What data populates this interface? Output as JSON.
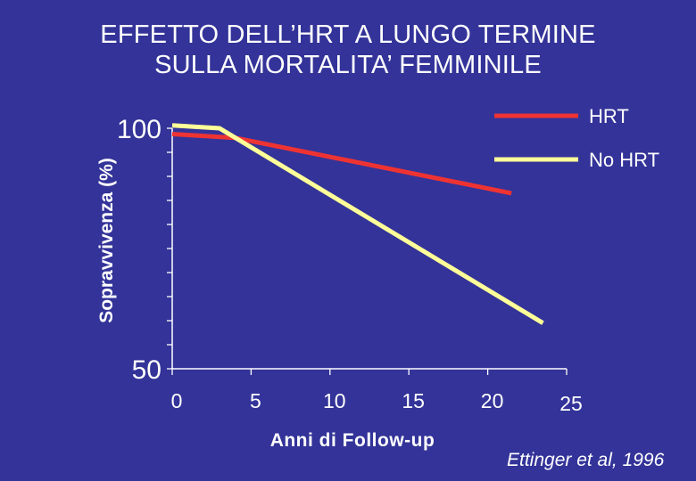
{
  "title_lines": [
    "EFFETTO DELL’HRT A LUNGO TERMINE",
    "SULLA MORTALITA’ FEMMINILE"
  ],
  "source": "Ettinger et al, 1996",
  "colors": {
    "background": "#333399",
    "hrt": "#ee3333",
    "no_hrt": "#ffff99",
    "axis": "#ffffff"
  },
  "chart_data": {
    "type": "line",
    "xlabel": "Anni di Follow-up",
    "ylabel": "Sopravvivenza (%)",
    "xlim": [
      0,
      25
    ],
    "ylim": [
      50,
      100
    ],
    "x_ticks": [
      0,
      5,
      10,
      15,
      20,
      25
    ],
    "y_tick_labels": [
      "50",
      "100"
    ],
    "grid": false,
    "legend": "top-right",
    "series": [
      {
        "name": "HRT",
        "color": "#ee3333",
        "x": [
          0,
          4,
          21.5
        ],
        "y": [
          98.8,
          98,
          86.5
        ]
      },
      {
        "name": "No HRT",
        "color": "#ffff99",
        "x": [
          0,
          3,
          23.5
        ],
        "y": [
          100.6,
          100,
          59.5
        ]
      }
    ]
  }
}
